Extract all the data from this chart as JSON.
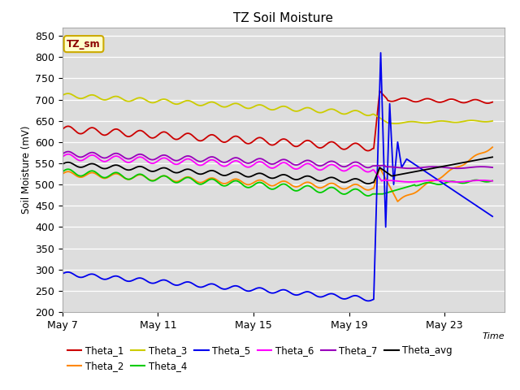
{
  "title": "TZ Soil Moisture",
  "ylabel": "Soil Moisture (mV)",
  "xlabel": "Time",
  "ylim": [
    200,
    870
  ],
  "yticks": [
    200,
    250,
    300,
    350,
    400,
    450,
    500,
    550,
    600,
    650,
    700,
    750,
    800,
    850
  ],
  "xticklabels": [
    "May 7",
    "May 11",
    "May 15",
    "May 19",
    "May 23"
  ],
  "xtick_pos": [
    0,
    4,
    8,
    12,
    16
  ],
  "xlim": [
    0,
    18.5
  ],
  "label_box": "TZ_sm",
  "series_colors": {
    "Theta_1": "#cc0000",
    "Theta_2": "#ff8800",
    "Theta_3": "#cccc00",
    "Theta_4": "#00cc00",
    "Theta_5": "#0000ee",
    "Theta_6": "#ff00ff",
    "Theta_7": "#9900bb",
    "Theta_avg": "#000000"
  },
  "bg_color": "#dddddd",
  "fig_bg": "#ffffff",
  "legend_ncol": 6,
  "legend_row2_ncol": 2
}
